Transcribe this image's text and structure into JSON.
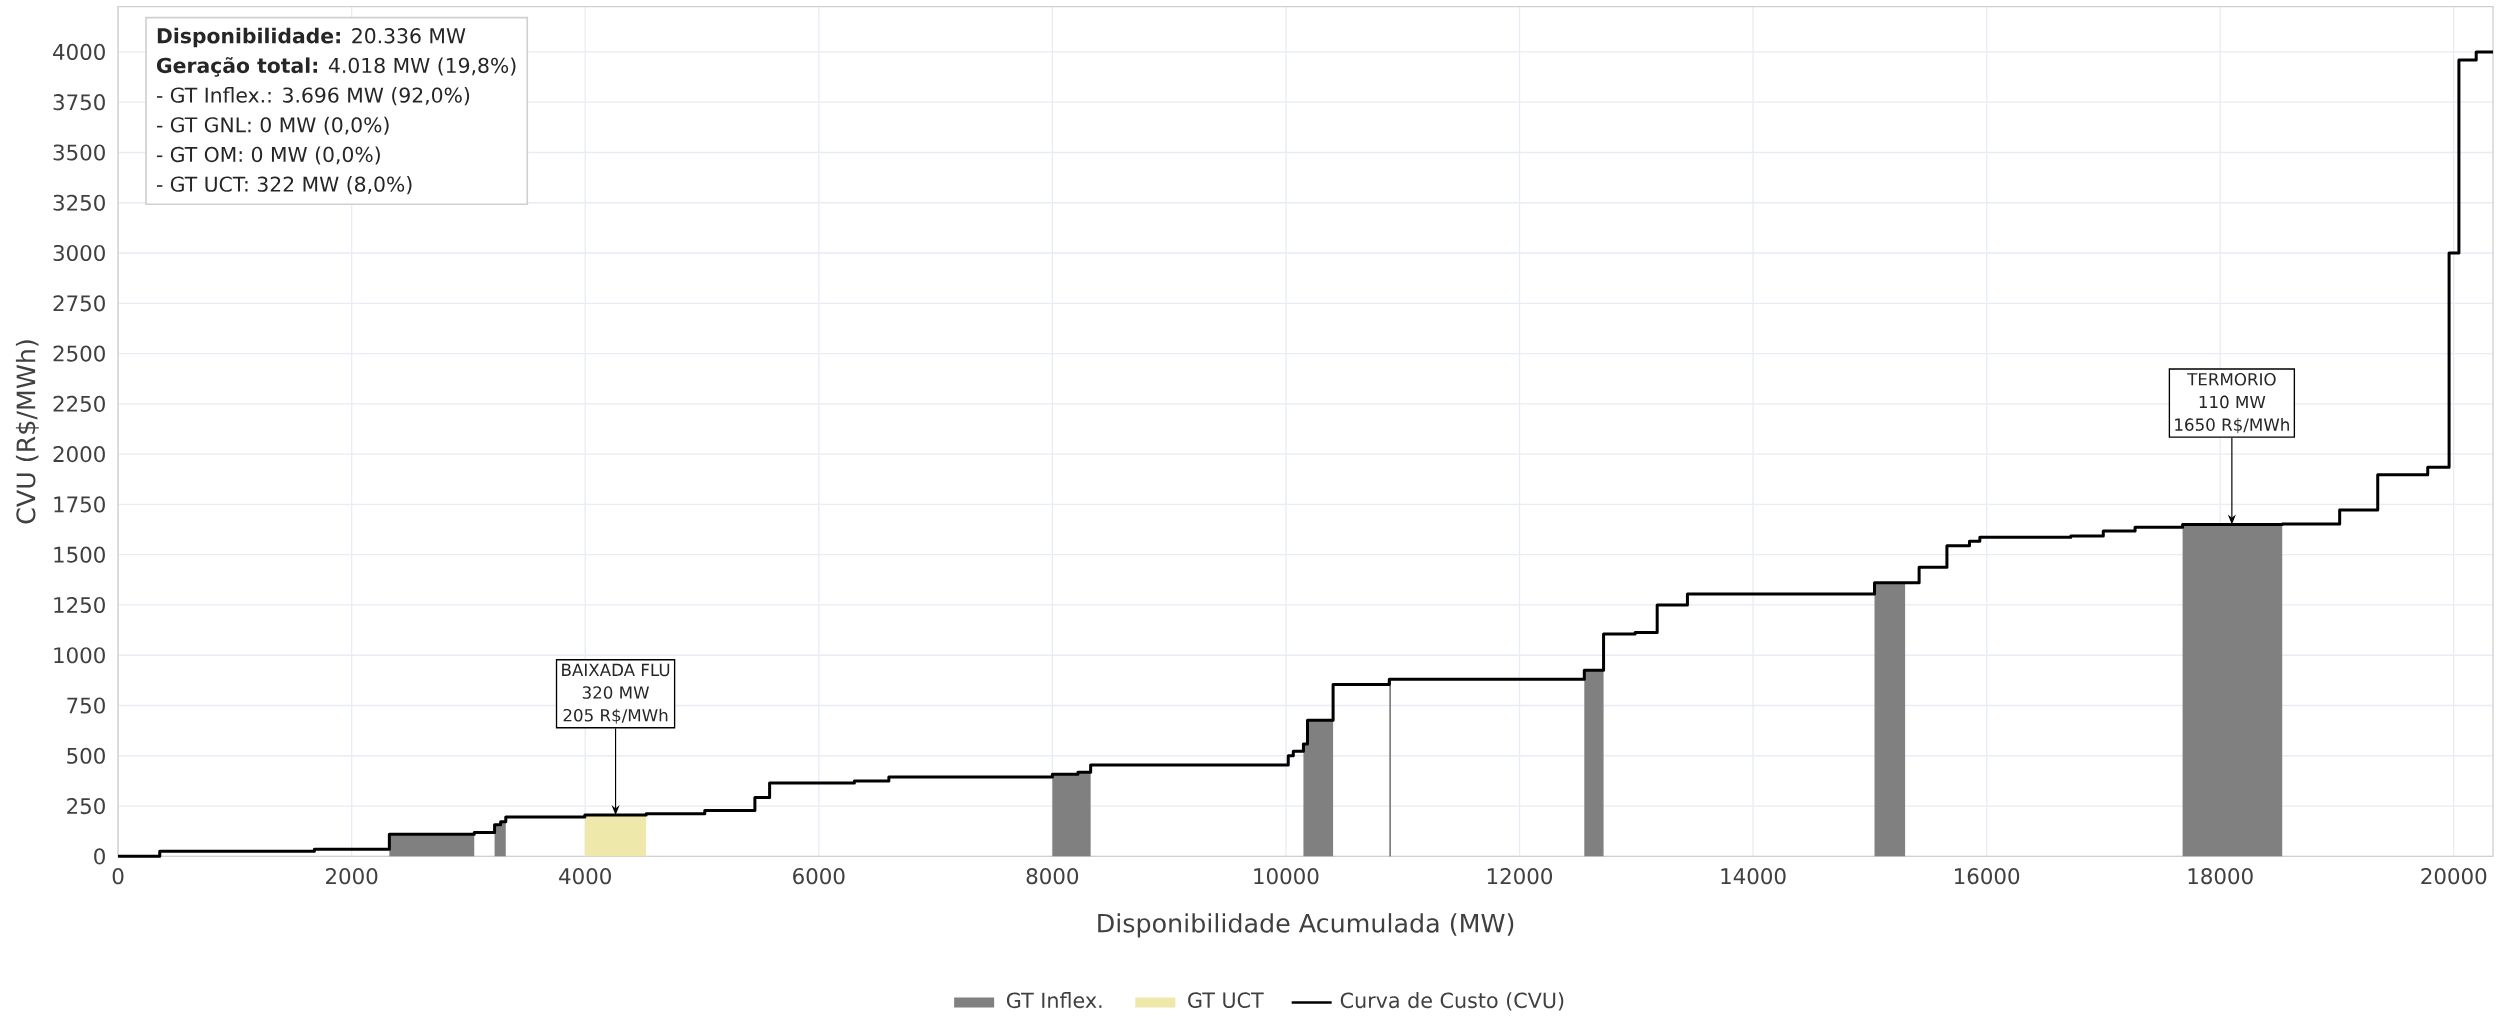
{
  "chart_data": {
    "type": "step",
    "xlabel": "Disponibilidade Acumulada (MW)",
    "ylabel": "CVU (R$/MWh)",
    "xlim": [
      0,
      20336
    ],
    "ylim": [
      0,
      4225
    ],
    "xticks": [
      0,
      2000,
      4000,
      6000,
      8000,
      10000,
      12000,
      14000,
      16000,
      18000,
      20000
    ],
    "yticks": [
      0,
      250,
      500,
      750,
      1000,
      1250,
      1500,
      1750,
      2000,
      2250,
      2500,
      2750,
      3000,
      3250,
      3500,
      3750,
      4000
    ],
    "grid": true,
    "legend": "bottom",
    "series": [
      {
        "name": "GT Inflex.",
        "type": "area",
        "color": "#808080",
        "x": [
          2323,
          3050,
          null,
          3224,
          3276,
          3276,
          3320,
          null,
          8000,
          8219,
          8219,
          8328,
          null,
          10150,
          10185,
          10185,
          10404,
          null,
          10885,
          10900,
          null,
          12555,
          12720,
          null,
          15040,
          15302,
          null,
          17678,
          18531
        ],
        "values": [
          110,
          110,
          null,
          157,
          157,
          172,
          172,
          null,
          408,
          408,
          418,
          418,
          null,
          558,
          558,
          677,
          677,
          null,
          880,
          880,
          null,
          925,
          925,
          null,
          1360,
          1360,
          null,
          1650,
          1650
        ]
      },
      {
        "name": "GT UCT",
        "type": "area",
        "color": "#eee8aa",
        "x": [
          3997,
          4522
        ],
        "values": [
          205,
          205
        ]
      },
      {
        "name": "Curva de Custo (CVU)",
        "color": "#000000",
        "x": [
          0,
          357,
          1681,
          2323,
          3050,
          3224,
          3276,
          3320,
          3997,
          4522,
          5024,
          5453,
          5579,
          6305,
          6600,
          8000,
          8219,
          8328,
          10020,
          10063,
          10150,
          10185,
          10404,
          10885,
          12555,
          12720,
          12990,
          13179,
          13438,
          15040,
          15422,
          15660,
          15853,
          15942,
          16721,
          16999,
          17271,
          17678,
          18531,
          19023,
          19349,
          19777,
          19960,
          20044,
          20192,
          20336
        ],
        "values": [
          0,
          25,
          35,
          110,
          119,
          157,
          172,
          195,
          205,
          212,
          228,
          293,
          365,
          375,
          395,
          408,
          418,
          454,
          500,
          522,
          558,
          677,
          855,
          880,
          925,
          1105,
          1113,
          1250,
          1305,
          1360,
          1437,
          1544,
          1567,
          1587,
          1593,
          1618,
          1636,
          1650,
          1653,
          1722,
          1898,
          1935,
          3000,
          3960,
          4000,
          4000
        ]
      }
    ],
    "annotations": [
      "BAIXADA FLU",
      "320 MW",
      {
        "text": "205 R$/MWh",
        "x": 4260,
        "y": 205
      },
      "TERMORIO",
      "110 MW",
      {
        "text": "1650 R$/MWh",
        "x": 18100,
        "y": 1650
      },
      "**Disponibilidade:** 20.336 MW",
      "**Geração total:** 4.018 MW (19,8%)",
      "- GT Inflex.: 3.696 MW (92,0%)",
      "- GT GNL: 0 MW (0,0%)",
      "- GT OM: 0 MW (0,0%)",
      "- GT UCT: 322 MW (8,0%)"
    ]
  }
}
